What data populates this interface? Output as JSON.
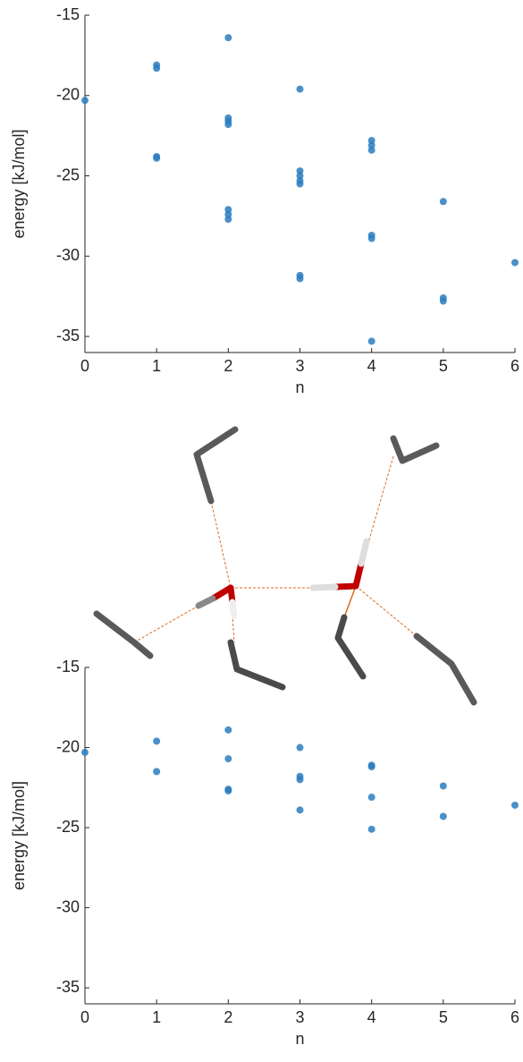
{
  "chart_data": [
    {
      "type": "scatter",
      "xlabel": "n",
      "ylabel": "energy [kJ/mol]",
      "color": "#2a7cc0",
      "x": [
        0,
        1,
        1,
        1,
        1,
        2,
        2,
        2,
        2,
        2,
        2,
        2,
        3,
        3,
        3,
        3,
        3,
        3,
        3,
        4,
        4,
        4,
        4,
        4,
        4,
        5,
        5,
        5,
        6
      ],
      "values": [
        -20.3,
        -18.1,
        -18.3,
        -23.8,
        -23.9,
        -16.4,
        -21.4,
        -21.6,
        -21.8,
        -27.1,
        -27.4,
        -27.7,
        -19.6,
        -24.7,
        -25.0,
        -25.3,
        -25.5,
        -31.2,
        -31.4,
        -22.8,
        -23.1,
        -23.4,
        -28.7,
        -28.9,
        -35.3,
        -26.6,
        -32.6,
        -32.8,
        -30.4
      ],
      "xlim": [
        0,
        6
      ],
      "ylim": [
        -36,
        -15
      ],
      "xticks": [
        0,
        1,
        2,
        3,
        4,
        5,
        6
      ],
      "yticks": [
        -15,
        -20,
        -25,
        -30,
        -35
      ]
    },
    {
      "type": "scatter",
      "xlabel": "n",
      "ylabel": "energy [kJ/mol]",
      "color": "#2a7cc0",
      "x": [
        0,
        1,
        1,
        2,
        2,
        2,
        2,
        3,
        3,
        3,
        3,
        4,
        4,
        4,
        4,
        5,
        5,
        6
      ],
      "values": [
        -20.3,
        -19.6,
        -21.5,
        -18.9,
        -20.7,
        -22.6,
        -22.7,
        -20.0,
        -21.8,
        -22.0,
        -23.9,
        -21.1,
        -21.2,
        -23.1,
        -25.1,
        -22.4,
        -24.3,
        -23.6
      ],
      "xlim": [
        0,
        6
      ],
      "ylim": [
        -36,
        -15
      ],
      "xticks": [
        0,
        1,
        2,
        3,
        4,
        5,
        6
      ],
      "yticks": [
        -15,
        -20,
        -25,
        -30,
        -35
      ]
    }
  ]
}
